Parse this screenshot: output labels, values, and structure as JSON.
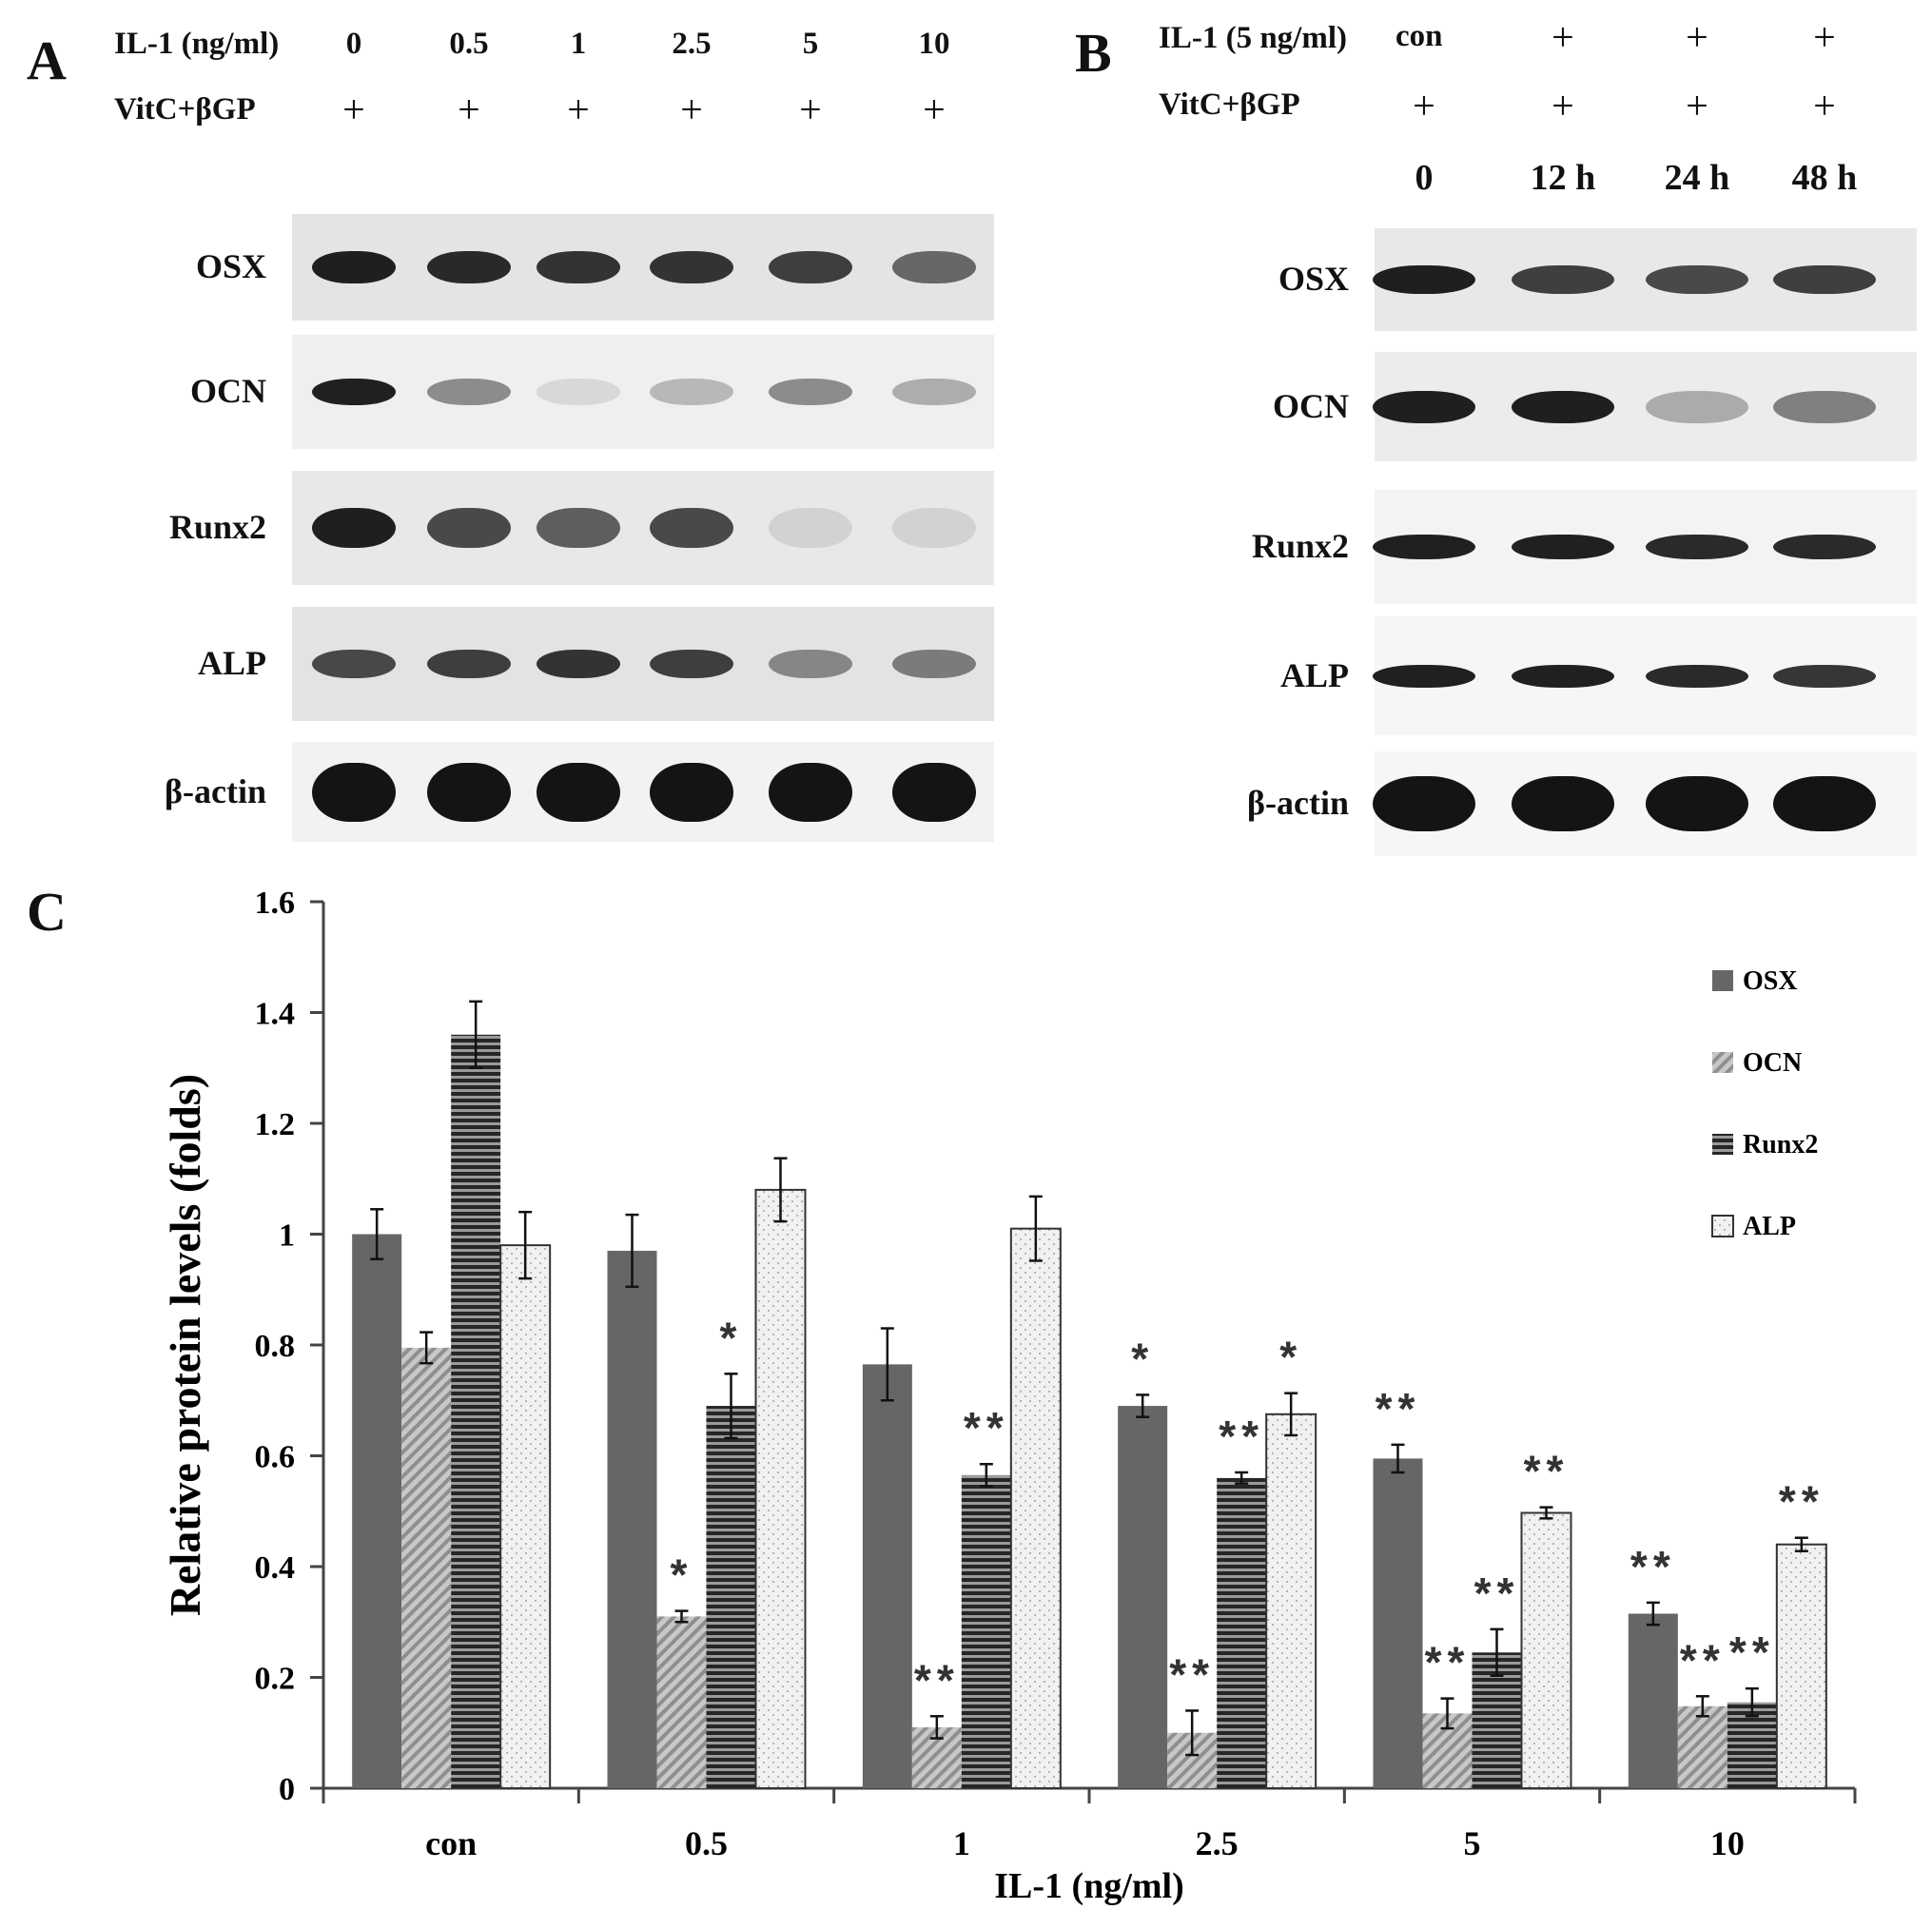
{
  "panel_a": {
    "letter": "A",
    "il1_label": "IL-1 (ng/ml)",
    "concentrations": [
      "0",
      "0.5",
      "1",
      "2.5",
      "5",
      "10"
    ],
    "vitc_label": "VitC+βGP",
    "vitc_marks": [
      "+",
      "+",
      "+",
      "+",
      "+",
      "+"
    ],
    "proteins": [
      "OSX",
      "OCN",
      "Runx2",
      "ALP",
      "β-actin"
    ],
    "band_intensity": [
      [
        0.95,
        0.9,
        0.85,
        0.85,
        0.8,
        0.6
      ],
      [
        0.95,
        0.45,
        0.1,
        0.25,
        0.45,
        0.3
      ],
      [
        0.95,
        0.75,
        0.65,
        0.75,
        0.1,
        0.1
      ],
      [
        0.75,
        0.8,
        0.85,
        0.8,
        0.45,
        0.5
      ],
      [
        1,
        1,
        1,
        1,
        1,
        1
      ]
    ]
  },
  "panel_b": {
    "letter": "B",
    "il1_label": "IL-1 (5 ng/ml)",
    "il1_marks": [
      "con",
      "+",
      "+",
      "+"
    ],
    "vitc_label": "VitC+βGP",
    "vitc_marks": [
      "+",
      "+",
      "+",
      "+"
    ],
    "times": [
      "0",
      "12 h",
      "24 h",
      "48 h"
    ],
    "proteins": [
      "OSX",
      "OCN",
      "Runx2",
      "ALP",
      "β-actin"
    ],
    "band_intensity": [
      [
        0.95,
        0.8,
        0.75,
        0.8
      ],
      [
        0.95,
        0.95,
        0.3,
        0.5
      ],
      [
        0.95,
        0.95,
        0.9,
        0.9
      ],
      [
        0.95,
        0.95,
        0.9,
        0.85
      ],
      [
        1,
        1,
        1,
        1
      ]
    ]
  },
  "panel_c": {
    "letter": "C"
  },
  "chart_data": {
    "type": "bar",
    "title": "",
    "xlabel": "IL-1 (ng/ml)",
    "ylabel": "Relative protein levels (folds)",
    "ylim": [
      0,
      1.6
    ],
    "yticks": [
      "0",
      "0.2",
      "0.4",
      "0.6",
      "0.8",
      "1",
      "1.2",
      "1.4",
      "1.6"
    ],
    "categories": [
      "con",
      "0.5",
      "1",
      "2.5",
      "5",
      "10"
    ],
    "legend_position": "right",
    "series": [
      {
        "name": "OSX",
        "color": "#666666",
        "pattern": "solid",
        "values": [
          1.0,
          0.97,
          0.765,
          0.69,
          0.595,
          0.315
        ],
        "errors": [
          0.045,
          0.065,
          0.065,
          0.02,
          0.025,
          0.02
        ],
        "significance": [
          "",
          "",
          "",
          "*",
          "**",
          "**"
        ]
      },
      {
        "name": "OCN",
        "color": "#bbbbbb",
        "pattern": "diagonal",
        "values": [
          0.795,
          0.31,
          0.11,
          0.1,
          0.135,
          0.148
        ],
        "errors": [
          0.028,
          0.01,
          0.02,
          0.04,
          0.027,
          0.018
        ],
        "significance": [
          "",
          "*",
          "**",
          "**",
          "**",
          "**"
        ]
      },
      {
        "name": "Runx2",
        "color": "#333333",
        "pattern": "horizontal",
        "values": [
          1.36,
          0.69,
          0.565,
          0.56,
          0.245,
          0.155
        ],
        "errors": [
          0.06,
          0.058,
          0.02,
          0.01,
          0.042,
          0.025
        ],
        "significance": [
          "",
          "*",
          "**",
          "**",
          "**",
          "**"
        ]
      },
      {
        "name": "ALP",
        "color": "#eeeeee",
        "pattern": "dotted",
        "values": [
          0.98,
          1.08,
          1.01,
          0.675,
          0.497,
          0.44
        ],
        "errors": [
          0.06,
          0.057,
          0.058,
          0.038,
          0.01,
          0.012
        ],
        "significance": [
          "",
          "",
          "",
          "*",
          "**",
          "**"
        ]
      }
    ]
  }
}
